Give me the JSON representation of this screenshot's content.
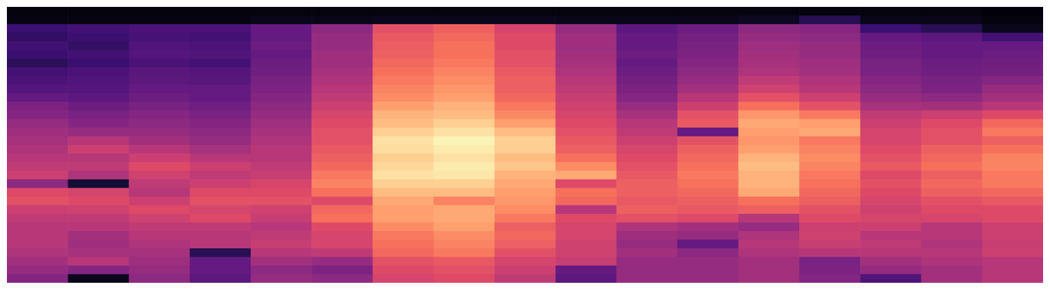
{
  "chart_data": {
    "type": "heatmap",
    "color": "magma",
    "zlim": [
      0,
      1
    ],
    "tick_labels": false,
    "grid": false,
    "values": [
      [
        0.02,
        0.02,
        0.02,
        0.02,
        0.02,
        0.02,
        0.02,
        0.02,
        0.02,
        0.02,
        0.02,
        0.02,
        0.02,
        0.02,
        0.02,
        0.02,
        0.01
      ],
      [
        0.03,
        0.03,
        0.03,
        0.03,
        0.04,
        0.04,
        0.05,
        0.05,
        0.05,
        0.04,
        0.04,
        0.04,
        0.06,
        0.15,
        0.04,
        0.04,
        0.02
      ],
      [
        0.2,
        0.22,
        0.24,
        0.24,
        0.3,
        0.4,
        0.62,
        0.66,
        0.58,
        0.42,
        0.28,
        0.32,
        0.4,
        0.38,
        0.2,
        0.15,
        0.05
      ],
      [
        0.18,
        0.2,
        0.23,
        0.22,
        0.3,
        0.42,
        0.64,
        0.68,
        0.6,
        0.44,
        0.3,
        0.34,
        0.42,
        0.4,
        0.3,
        0.28,
        0.22
      ],
      [
        0.22,
        0.18,
        0.25,
        0.24,
        0.32,
        0.42,
        0.65,
        0.7,
        0.6,
        0.44,
        0.3,
        0.35,
        0.44,
        0.42,
        0.32,
        0.3,
        0.3
      ],
      [
        0.2,
        0.22,
        0.26,
        0.25,
        0.3,
        0.44,
        0.66,
        0.7,
        0.62,
        0.45,
        0.32,
        0.36,
        0.45,
        0.42,
        0.33,
        0.3,
        0.32
      ],
      [
        0.16,
        0.2,
        0.24,
        0.22,
        0.32,
        0.44,
        0.68,
        0.72,
        0.62,
        0.46,
        0.3,
        0.38,
        0.46,
        0.44,
        0.35,
        0.32,
        0.33
      ],
      [
        0.22,
        0.24,
        0.27,
        0.26,
        0.33,
        0.46,
        0.7,
        0.74,
        0.64,
        0.48,
        0.32,
        0.4,
        0.48,
        0.45,
        0.35,
        0.33,
        0.34
      ],
      [
        0.24,
        0.25,
        0.28,
        0.27,
        0.35,
        0.48,
        0.72,
        0.76,
        0.66,
        0.5,
        0.34,
        0.42,
        0.52,
        0.48,
        0.38,
        0.35,
        0.38
      ],
      [
        0.26,
        0.26,
        0.3,
        0.3,
        0.36,
        0.5,
        0.74,
        0.78,
        0.66,
        0.52,
        0.36,
        0.45,
        0.56,
        0.5,
        0.4,
        0.36,
        0.42
      ],
      [
        0.3,
        0.28,
        0.32,
        0.3,
        0.38,
        0.52,
        0.76,
        0.8,
        0.68,
        0.54,
        0.38,
        0.5,
        0.62,
        0.55,
        0.42,
        0.4,
        0.45
      ],
      [
        0.36,
        0.32,
        0.35,
        0.33,
        0.4,
        0.55,
        0.8,
        0.84,
        0.72,
        0.56,
        0.42,
        0.55,
        0.7,
        0.62,
        0.46,
        0.45,
        0.5
      ],
      [
        0.38,
        0.35,
        0.38,
        0.35,
        0.42,
        0.58,
        0.84,
        0.86,
        0.75,
        0.58,
        0.46,
        0.62,
        0.78,
        0.72,
        0.52,
        0.55,
        0.6
      ],
      [
        0.42,
        0.38,
        0.4,
        0.38,
        0.44,
        0.6,
        0.86,
        0.9,
        0.8,
        0.6,
        0.5,
        0.64,
        0.82,
        0.8,
        0.55,
        0.6,
        0.68
      ],
      [
        0.44,
        0.42,
        0.42,
        0.4,
        0.46,
        0.62,
        0.9,
        0.94,
        0.86,
        0.62,
        0.52,
        0.3,
        0.8,
        0.82,
        0.58,
        0.62,
        0.72
      ],
      [
        0.46,
        0.5,
        0.45,
        0.42,
        0.48,
        0.62,
        0.94,
        0.98,
        0.9,
        0.64,
        0.55,
        0.62,
        0.78,
        0.72,
        0.58,
        0.62,
        0.66
      ],
      [
        0.48,
        0.55,
        0.5,
        0.46,
        0.5,
        0.64,
        0.93,
        0.96,
        0.9,
        0.66,
        0.58,
        0.66,
        0.8,
        0.74,
        0.6,
        0.66,
        0.7
      ],
      [
        0.5,
        0.5,
        0.55,
        0.5,
        0.5,
        0.66,
        0.9,
        0.94,
        0.86,
        0.7,
        0.6,
        0.68,
        0.84,
        0.76,
        0.62,
        0.68,
        0.74
      ],
      [
        0.52,
        0.52,
        0.6,
        0.55,
        0.52,
        0.68,
        0.92,
        0.96,
        0.88,
        0.76,
        0.62,
        0.7,
        0.86,
        0.74,
        0.64,
        0.7,
        0.74
      ],
      [
        0.55,
        0.48,
        0.56,
        0.52,
        0.54,
        0.72,
        0.94,
        0.95,
        0.84,
        0.82,
        0.64,
        0.72,
        0.84,
        0.72,
        0.6,
        0.66,
        0.72
      ],
      [
        0.4,
        0.1,
        0.52,
        0.55,
        0.58,
        0.74,
        0.9,
        0.9,
        0.82,
        0.6,
        0.66,
        0.7,
        0.84,
        0.7,
        0.62,
        0.68,
        0.72
      ],
      [
        0.6,
        0.58,
        0.5,
        0.6,
        0.6,
        0.7,
        0.86,
        0.86,
        0.8,
        0.7,
        0.66,
        0.68,
        0.82,
        0.68,
        0.6,
        0.66,
        0.68
      ],
      [
        0.62,
        0.6,
        0.55,
        0.62,
        0.62,
        0.6,
        0.82,
        0.74,
        0.78,
        0.68,
        0.64,
        0.66,
        0.7,
        0.66,
        0.58,
        0.62,
        0.64
      ],
      [
        0.55,
        0.56,
        0.6,
        0.58,
        0.56,
        0.68,
        0.8,
        0.82,
        0.76,
        0.5,
        0.66,
        0.64,
        0.66,
        0.62,
        0.56,
        0.6,
        0.6
      ],
      [
        0.52,
        0.52,
        0.56,
        0.6,
        0.54,
        0.7,
        0.8,
        0.82,
        0.72,
        0.6,
        0.62,
        0.6,
        0.5,
        0.6,
        0.58,
        0.58,
        0.6
      ],
      [
        0.5,
        0.5,
        0.52,
        0.52,
        0.5,
        0.6,
        0.76,
        0.8,
        0.66,
        0.58,
        0.48,
        0.45,
        0.42,
        0.55,
        0.55,
        0.5,
        0.55
      ],
      [
        0.5,
        0.45,
        0.5,
        0.5,
        0.52,
        0.58,
        0.72,
        0.76,
        0.68,
        0.58,
        0.44,
        0.42,
        0.48,
        0.56,
        0.5,
        0.5,
        0.55
      ],
      [
        0.5,
        0.44,
        0.48,
        0.5,
        0.54,
        0.58,
        0.7,
        0.74,
        0.66,
        0.56,
        0.42,
        0.3,
        0.5,
        0.54,
        0.52,
        0.48,
        0.54
      ],
      [
        0.48,
        0.46,
        0.46,
        0.15,
        0.5,
        0.52,
        0.68,
        0.72,
        0.62,
        0.56,
        0.45,
        0.4,
        0.48,
        0.5,
        0.5,
        0.5,
        0.55
      ],
      [
        0.45,
        0.5,
        0.44,
        0.3,
        0.45,
        0.42,
        0.62,
        0.64,
        0.58,
        0.54,
        0.42,
        0.42,
        0.45,
        0.35,
        0.45,
        0.48,
        0.5
      ],
      [
        0.42,
        0.38,
        0.42,
        0.3,
        0.4,
        0.36,
        0.6,
        0.62,
        0.55,
        0.3,
        0.42,
        0.42,
        0.45,
        0.36,
        0.42,
        0.45,
        0.5
      ],
      [
        0.38,
        0.05,
        0.4,
        0.28,
        0.42,
        0.4,
        0.58,
        0.6,
        0.52,
        0.28,
        0.42,
        0.42,
        0.45,
        0.38,
        0.25,
        0.45,
        0.5
      ]
    ]
  }
}
